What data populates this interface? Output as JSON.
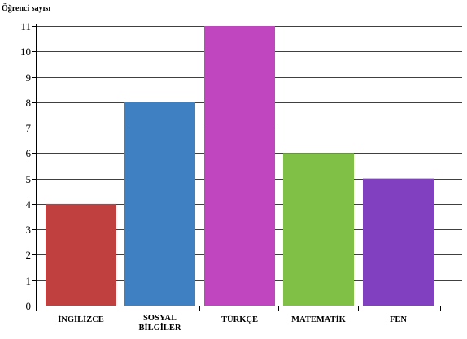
{
  "chart_data": {
    "type": "bar",
    "title": "",
    "xlabel": "",
    "ylabel": "Öğrenci sayısı",
    "ylim": [
      0,
      11
    ],
    "yticks": [
      0,
      1,
      2,
      3,
      4,
      5,
      6,
      7,
      8,
      9,
      10,
      11
    ],
    "grid": true,
    "categories": [
      [
        "İNGİLİZCE"
      ],
      [
        "SOSYAL",
        "BİLGİLER"
      ],
      [
        "TÜRKÇE"
      ],
      [
        "MATEMATİK"
      ],
      [
        "FEN"
      ]
    ],
    "values": [
      4,
      8,
      11,
      6,
      5
    ],
    "colors": [
      "#c04040",
      "#3f80c3",
      "#c046c0",
      "#80c046",
      "#8040c0"
    ]
  }
}
